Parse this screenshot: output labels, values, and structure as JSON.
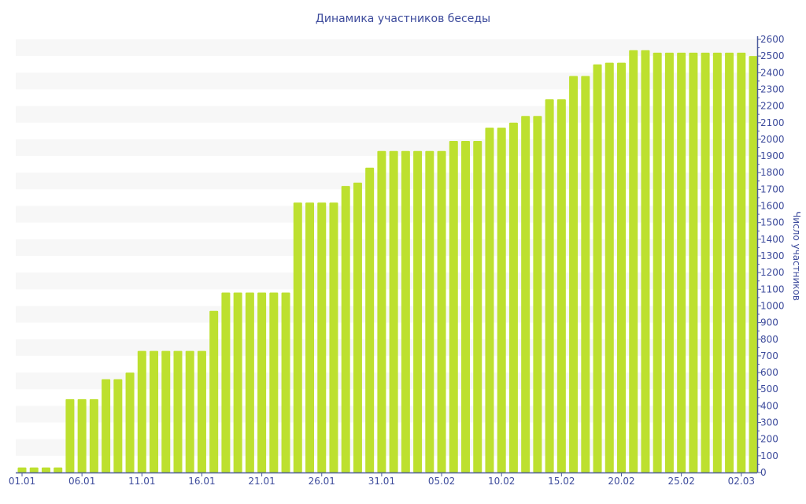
{
  "chart_data": {
    "type": "bar",
    "title": "Динамика участников беседы",
    "xlabel": "",
    "ylabel": "Число участников",
    "ylim": [
      0,
      2600
    ],
    "y_ticks": [
      0,
      100,
      200,
      300,
      400,
      500,
      600,
      700,
      800,
      900,
      1000,
      1100,
      1200,
      1300,
      1400,
      1500,
      1600,
      1700,
      1800,
      1900,
      2000,
      2100,
      2200,
      2300,
      2400,
      2500,
      2600
    ],
    "x_tick_labels": [
      "01.01",
      "06.01",
      "11.01",
      "16.01",
      "21.01",
      "26.01",
      "31.01",
      "05.02",
      "10.02",
      "15.02",
      "20.02",
      "25.02",
      "02.03"
    ],
    "x_tick_every": 5,
    "categories": [
      "01.01",
      "02.01",
      "03.01",
      "04.01",
      "05.01",
      "06.01",
      "07.01",
      "08.01",
      "09.01",
      "10.01",
      "11.01",
      "12.01",
      "13.01",
      "14.01",
      "15.01",
      "16.01",
      "17.01",
      "18.01",
      "19.01",
      "20.01",
      "21.01",
      "22.01",
      "23.01",
      "24.01",
      "25.01",
      "26.01",
      "27.01",
      "28.01",
      "29.01",
      "30.01",
      "31.01",
      "01.02",
      "02.02",
      "03.02",
      "04.02",
      "05.02",
      "06.02",
      "07.02",
      "08.02",
      "09.02",
      "10.02",
      "11.02",
      "12.02",
      "13.02",
      "14.02",
      "15.02",
      "16.02",
      "17.02",
      "18.02",
      "19.02",
      "20.02",
      "21.02",
      "22.02",
      "23.02",
      "24.02",
      "25.02",
      "26.02",
      "27.02",
      "28.02",
      "01.03",
      "02.03",
      "03.03"
    ],
    "values": [
      30,
      30,
      30,
      30,
      440,
      440,
      440,
      560,
      560,
      600,
      730,
      730,
      730,
      730,
      730,
      730,
      970,
      1080,
      1080,
      1080,
      1080,
      1080,
      1080,
      1620,
      1620,
      1620,
      1620,
      1720,
      1740,
      1830,
      1930,
      1930,
      1930,
      1930,
      1930,
      1930,
      1990,
      1990,
      1990,
      2070,
      2070,
      2100,
      2140,
      2140,
      2240,
      2240,
      2380,
      2380,
      2450,
      2460,
      2460,
      2535,
      2535,
      2520,
      2520,
      2520,
      2520,
      2520,
      2520,
      2520,
      2520,
      2500
    ],
    "grid": "alternating horizontal bands",
    "y_axis_position": "right",
    "colors": {
      "bar": "#bde02f",
      "band": "#f7f7f7",
      "axis": "#4a5a9c",
      "text": "#3d4b9c"
    }
  }
}
